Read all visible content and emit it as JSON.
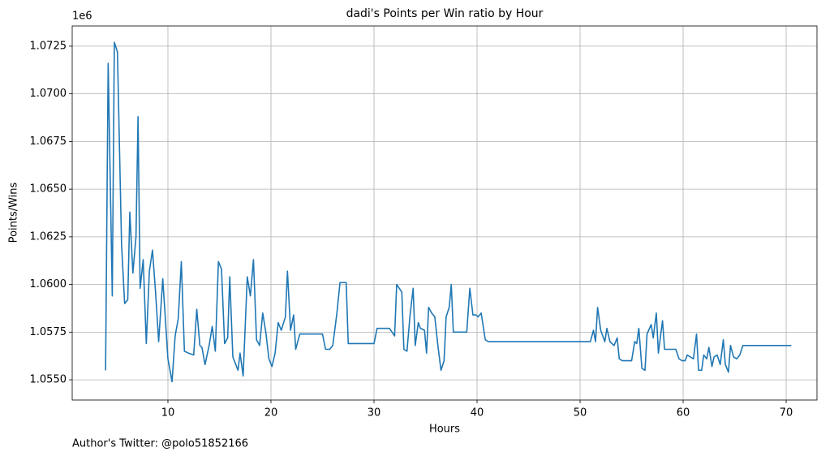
{
  "chart_data": {
    "type": "line",
    "title": "dadi's Points per Win ratio by Hour",
    "x_label": "Hours",
    "y_label": "Points/Wins",
    "y_offset_label": "1e6",
    "footnote": "Author's Twitter: @polo51852166",
    "grid": true,
    "xlim": [
      0.71,
      72.99
    ],
    "ylim": [
      1.05394,
      1.07356
    ],
    "xticks": [
      10,
      20,
      30,
      40,
      50,
      60,
      70
    ],
    "yticks": [
      {
        "value": 1.055,
        "label": "1.0550"
      },
      {
        "value": 1.0575,
        "label": "1.0575"
      },
      {
        "value": 1.06,
        "label": "1.0600"
      },
      {
        "value": 1.0625,
        "label": "1.0625"
      },
      {
        "value": 1.065,
        "label": "1.0650"
      },
      {
        "value": 1.0675,
        "label": "1.0675"
      },
      {
        "value": 1.07,
        "label": "1.0700"
      },
      {
        "value": 1.0725,
        "label": "1.0725"
      }
    ],
    "series": [
      {
        "color": "#1f77b4",
        "x": [
          3.95,
          4.2,
          4.6,
          4.8,
          5.1,
          5.5,
          5.8,
          6.1,
          6.3,
          6.6,
          6.9,
          7.1,
          7.3,
          7.6,
          7.9,
          8.2,
          8.5,
          8.8,
          9.1,
          9.5,
          9.8,
          10.0,
          10.4,
          10.7,
          11.0,
          11.3,
          11.6,
          12.0,
          12.5,
          12.8,
          13.1,
          13.3,
          13.6,
          14.0,
          14.3,
          14.6,
          14.9,
          15.2,
          15.5,
          15.8,
          16.0,
          16.3,
          16.8,
          17.0,
          17.3,
          17.7,
          18.0,
          18.3,
          18.6,
          18.9,
          19.2,
          19.5,
          19.8,
          20.1,
          20.4,
          20.7,
          21.0,
          21.4,
          21.6,
          21.9,
          22.2,
          22.4,
          22.8,
          25.0,
          25.3,
          25.7,
          26.0,
          26.4,
          26.7,
          27.3,
          27.5,
          30.0,
          30.3,
          31.5,
          32.0,
          32.2,
          32.7,
          32.9,
          33.2,
          33.5,
          33.8,
          34.0,
          34.3,
          34.5,
          34.9,
          35.1,
          35.3,
          35.6,
          35.9,
          36.2,
          36.5,
          36.8,
          37.0,
          37.3,
          37.5,
          37.7,
          39.0,
          39.3,
          39.6,
          39.9,
          40.1,
          40.4,
          40.8,
          41.1,
          51.0,
          51.3,
          51.5,
          51.7,
          52.0,
          52.4,
          52.6,
          52.9,
          53.3,
          53.6,
          53.8,
          54.1,
          55.0,
          55.3,
          55.5,
          55.7,
          56.0,
          56.3,
          56.5,
          56.9,
          57.1,
          57.4,
          57.6,
          58.0,
          58.2,
          59.3,
          59.6,
          59.9,
          60.2,
          60.4,
          61.0,
          61.3,
          61.5,
          61.8,
          62.0,
          62.3,
          62.5,
          62.8,
          63.0,
          63.3,
          63.6,
          63.9,
          64.1,
          64.4,
          64.6,
          64.9,
          65.2,
          65.5,
          65.8,
          70.5
        ],
        "values": [
          1.0555,
          1.0716,
          1.0594,
          1.0727,
          1.0722,
          1.0621,
          1.059,
          1.0592,
          1.0638,
          1.0606,
          1.0625,
          1.0688,
          1.0598,
          1.0613,
          1.0569,
          1.0607,
          1.0618,
          1.0596,
          1.057,
          1.0603,
          1.0578,
          1.0561,
          1.0549,
          1.0573,
          1.0582,
          1.0612,
          1.0565,
          1.0564,
          1.0563,
          1.0587,
          1.0568,
          1.0567,
          1.0558,
          1.0568,
          1.0578,
          1.0565,
          1.0612,
          1.0608,
          1.0569,
          1.0572,
          1.0604,
          1.0562,
          1.0555,
          1.0564,
          1.0552,
          1.0604,
          1.0594,
          1.0613,
          1.0571,
          1.0568,
          1.0585,
          1.0575,
          1.0561,
          1.0557,
          1.0564,
          1.058,
          1.0576,
          1.0583,
          1.0607,
          1.0576,
          1.0584,
          1.0566,
          1.0574,
          1.0574,
          1.0566,
          1.0566,
          1.0568,
          1.0585,
          1.0601,
          1.0601,
          1.0569,
          1.0569,
          1.0577,
          1.0577,
          1.0573,
          1.06,
          1.0596,
          1.0566,
          1.0565,
          1.0584,
          1.0598,
          1.0568,
          1.058,
          1.0577,
          1.0576,
          1.0564,
          1.0588,
          1.0585,
          1.0583,
          1.0568,
          1.0555,
          1.056,
          1.0583,
          1.0588,
          1.06,
          1.0575,
          1.0575,
          1.0598,
          1.0584,
          1.0584,
          1.0583,
          1.0585,
          1.0571,
          1.057,
          1.057,
          1.0576,
          1.057,
          1.0588,
          1.0576,
          1.057,
          1.0577,
          1.057,
          1.0568,
          1.0572,
          1.0561,
          1.056,
          1.056,
          1.057,
          1.0569,
          1.0577,
          1.0556,
          1.0555,
          1.0574,
          1.0579,
          1.0572,
          1.0585,
          1.0564,
          1.0581,
          1.0566,
          1.0566,
          1.0561,
          1.056,
          1.056,
          1.0563,
          1.0561,
          1.0574,
          1.0555,
          1.0555,
          1.0563,
          1.0561,
          1.0567,
          1.0557,
          1.0562,
          1.0563,
          1.0558,
          1.0571,
          1.0558,
          1.0554,
          1.0568,
          1.0562,
          1.0561,
          1.0563,
          1.0568,
          1.0568
        ]
      }
    ]
  }
}
